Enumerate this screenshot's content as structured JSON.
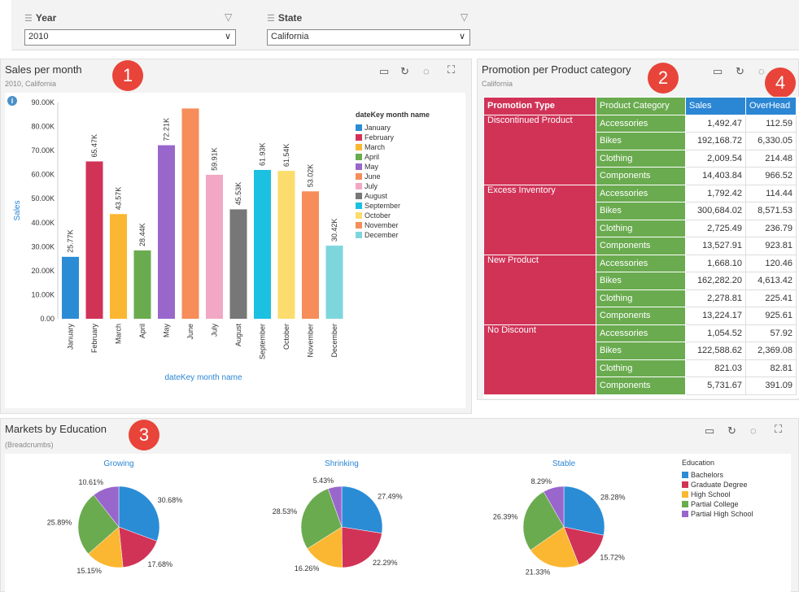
{
  "filters": {
    "year": {
      "label": "Year",
      "value": "2010"
    },
    "state": {
      "label": "State",
      "value": "California"
    }
  },
  "sales_panel": {
    "title": "Sales per month",
    "subtitle": "2010, California",
    "badge": "1"
  },
  "promo_panel": {
    "title": "Promotion per Product category",
    "subtitle": "California",
    "badge": "2",
    "badge2": "4",
    "headers": [
      "Promotion Type",
      "Product Category",
      "Sales",
      "OverHead"
    ],
    "groups": [
      {
        "type": "Discontinued Product",
        "rows": [
          [
            "Accessories",
            "1,492.47",
            "112.59"
          ],
          [
            "Bikes",
            "192,168.72",
            "6,330.05"
          ],
          [
            "Clothing",
            "2,009.54",
            "214.48"
          ],
          [
            "Components",
            "14,403.84",
            "966.52"
          ]
        ]
      },
      {
        "type": "Excess Inventory",
        "rows": [
          [
            "Accessories",
            "1,792.42",
            "114.44"
          ],
          [
            "Bikes",
            "300,684.02",
            "8,571.53"
          ],
          [
            "Clothing",
            "2,725.49",
            "236.79"
          ],
          [
            "Components",
            "13,527.91",
            "923.81"
          ]
        ]
      },
      {
        "type": "New Product",
        "rows": [
          [
            "Accessories",
            "1,668.10",
            "120.46"
          ],
          [
            "Bikes",
            "162,282.20",
            "4,613.42"
          ],
          [
            "Clothing",
            "2,278.81",
            "225.41"
          ],
          [
            "Components",
            "13,224.17",
            "925.61"
          ]
        ]
      },
      {
        "type": "No Discount",
        "rows": [
          [
            "Accessories",
            "1,054.52",
            "57.92"
          ],
          [
            "Bikes",
            "122,588.62",
            "2,369.08"
          ],
          [
            "Clothing",
            "821.03",
            "82.81"
          ],
          [
            "Components",
            "5,731.67",
            "391.09"
          ]
        ]
      }
    ],
    "colors": {
      "ptype": "#d13357",
      "pcat": "#6aab4f",
      "sales": "#2b86d4"
    }
  },
  "markets_panel": {
    "title": "Markets by Education",
    "subtitle": "(Breadcrumbs)",
    "badge": "3"
  },
  "chart_data": [
    {
      "type": "bar",
      "title": "",
      "xlabel": "dateKey month name",
      "ylabel": "Sales",
      "ylim": [
        0,
        90000
      ],
      "yticks": [
        "0.00",
        "10.00K",
        "20.00K",
        "30.00K",
        "40.00K",
        "50.00K",
        "60.00K",
        "70.00K",
        "80.00K",
        "90.00K"
      ],
      "categories": [
        "January",
        "February",
        "March",
        "April",
        "May",
        "June",
        "July",
        "August",
        "September",
        "October",
        "November",
        "December"
      ],
      "values": [
        25770,
        65470,
        43570,
        28440,
        72210,
        87500,
        59910,
        45530,
        61930,
        61540,
        53020,
        30420
      ],
      "data_labels": [
        "25.77K",
        "65.47K",
        "43.57K",
        "28.44K",
        "72.21K",
        "",
        "59.91K",
        "45.53K",
        "61.93K",
        "61.54K",
        "53.02K",
        "30.42K"
      ],
      "colors": [
        "#2b8cd6",
        "#d13357",
        "#fbb731",
        "#6aab4f",
        "#9966cc",
        "#f68d5b",
        "#f2a7c4",
        "#777777",
        "#1cc0e0",
        "#fcdc6c",
        "#f68d5b",
        "#7ed6dd"
      ],
      "legend_title": "dateKey month name",
      "legend_position": "right"
    },
    {
      "type": "pie",
      "legend_title": "Education",
      "legend": [
        "Bachelors",
        "Graduate Degree",
        "High School",
        "Partial College",
        "Partial High School"
      ],
      "colors": [
        "#2b8cd6",
        "#d13357",
        "#fbb731",
        "#6aab4f",
        "#9966cc"
      ],
      "pies": [
        {
          "title": "Growing",
          "values": [
            30.68,
            17.68,
            15.15,
            25.89,
            10.61
          ],
          "labels": [
            "30.68%",
            "17.68%",
            "15.15%",
            "25.89%",
            "10.61%"
          ]
        },
        {
          "title": "Shrinking",
          "values": [
            27.49,
            22.29,
            16.26,
            28.53,
            5.43
          ],
          "labels": [
            "27.49%",
            "22.29%",
            "16.26%",
            "28.53%",
            "5.43%"
          ]
        },
        {
          "title": "Stable",
          "values": [
            28.28,
            15.72,
            21.33,
            26.39,
            8.29
          ],
          "labels": [
            "28.28%",
            "15.72%",
            "21.33%",
            "26.39%",
            "8.29%"
          ]
        }
      ]
    }
  ]
}
